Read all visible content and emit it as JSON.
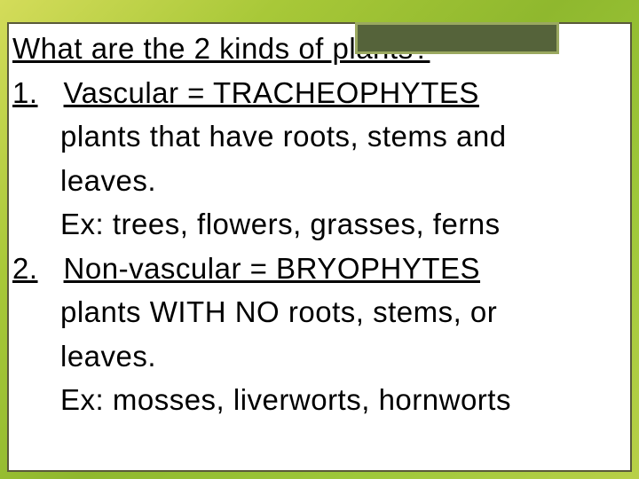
{
  "slide": {
    "title": "What are the 2 kinds of plants?",
    "items": [
      {
        "num": "1.",
        "heading": "Vascular = TRACHEOPHYTES",
        "desc_l1": "plants that have roots, stems and",
        "desc_l2": "leaves.",
        "example": "Ex: trees, flowers, grasses, ferns"
      },
      {
        "num": "2.",
        "heading": "Non-vascular = BRYOPHYTES",
        "desc_l1": "plants WITH NO roots, stems, or",
        "desc_l2": "leaves.",
        "example": "Ex: mosses, liverworts, hornworts"
      }
    ],
    "style": {
      "background_gradient": [
        "#d4dc5a",
        "#a8c838",
        "#8fb82e",
        "#9ec83a",
        "#b8d048"
      ],
      "frame_border_color": "#5a5a3a",
      "frame_background": "#ffffff",
      "accent_box_fill": "#55633a",
      "accent_box_border": "#9aa860",
      "text_color": "#000000",
      "font_family": "Trebuchet MS",
      "base_fontsize_pt": 25,
      "line_height": 1.5
    }
  }
}
